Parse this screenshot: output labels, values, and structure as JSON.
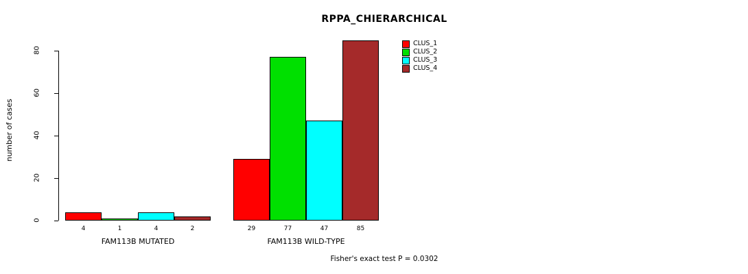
{
  "header": {
    "title": "RPPA_CHIERARCHICAL"
  },
  "footer": {
    "note": "Fisher's exact test P = 0.0302"
  },
  "chart_data": {
    "type": "bar",
    "title": "RPPA_CHIERARCHICAL",
    "xlabel": "",
    "ylabel": "number of cases",
    "ylim": [
      0,
      85
    ],
    "yticks": [
      0,
      20,
      40,
      60,
      80
    ],
    "grid": false,
    "legend_position": "top-right",
    "categories": [
      "FAM113B MUTATED",
      "FAM113B WILD-TYPE"
    ],
    "series": [
      {
        "name": "CLUS_1",
        "color": "#FF0000",
        "values": [
          4,
          29
        ]
      },
      {
        "name": "CLUS_2",
        "color": "#00E000",
        "values": [
          1,
          77
        ]
      },
      {
        "name": "CLUS_3",
        "color": "#00FFFF",
        "values": [
          4,
          47
        ]
      },
      {
        "name": "CLUS_4",
        "color": "#A52A2A",
        "values": [
          2,
          85
        ]
      }
    ],
    "bar_labels": [
      [
        4,
        1,
        4,
        2
      ],
      [
        29,
        77,
        47,
        85
      ]
    ],
    "annotation": "Fisher's exact test P = 0.0302"
  }
}
